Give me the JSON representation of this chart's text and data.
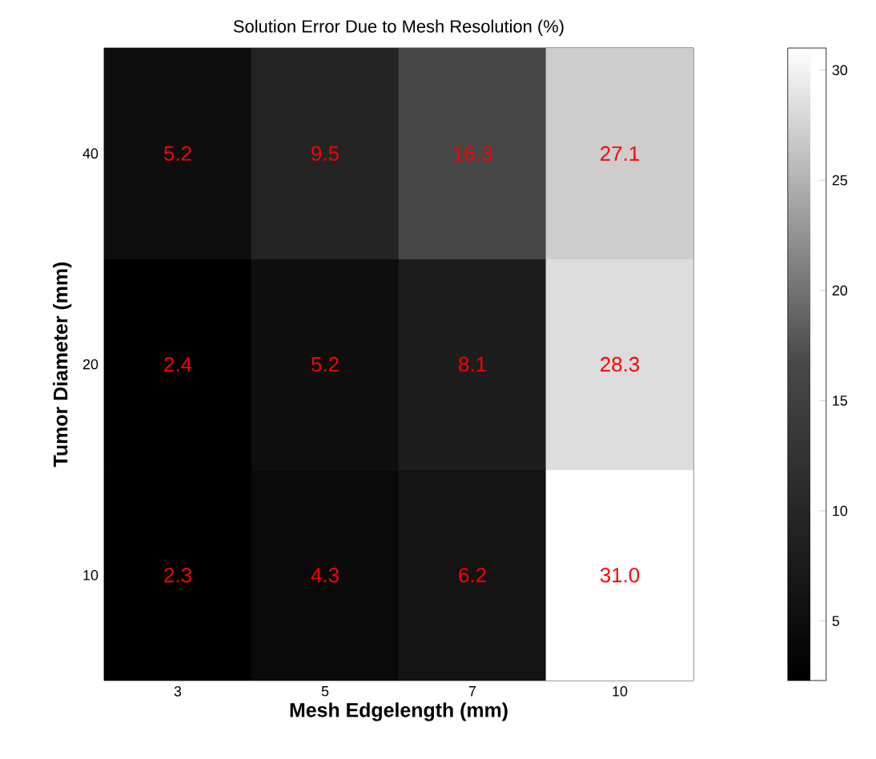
{
  "chart_data": {
    "type": "heatmap",
    "title": "Solution Error Due to Mesh Resolution (%)",
    "xlabel": "Mesh Edgelength (mm)",
    "ylabel": "Tumor Diameter (mm)",
    "categories": [
      "3",
      "5",
      "7",
      "10"
    ],
    "y_categories": [
      "40",
      "20",
      "10"
    ],
    "cells": [
      [
        5.2,
        9.5,
        16.3,
        27.1
      ],
      [
        2.4,
        5.2,
        8.1,
        28.3
      ],
      [
        2.3,
        4.3,
        6.2,
        31.0
      ]
    ],
    "cell_labels": [
      [
        "5.2",
        "9.5",
        "16.3",
        "27.1"
      ],
      [
        "2.4",
        "5.2",
        "8.1",
        "28.3"
      ],
      [
        "2.3",
        "4.3",
        "6.2",
        "31.0"
      ]
    ],
    "clim": [
      2.3,
      31.0
    ],
    "cticks": [
      5,
      10,
      15,
      20,
      25,
      30
    ]
  }
}
